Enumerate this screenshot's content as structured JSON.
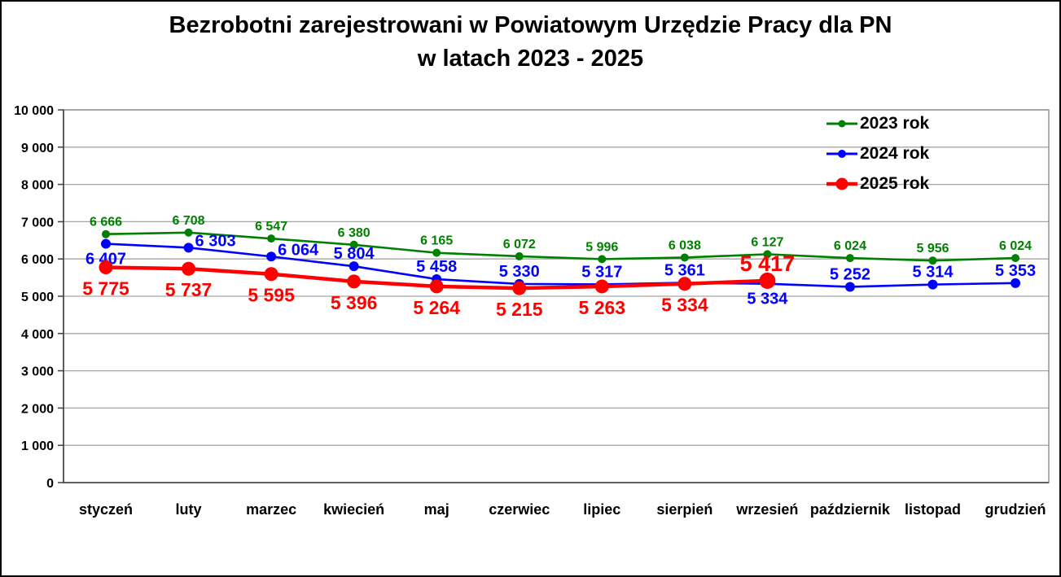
{
  "title": {
    "line1": "Bezrobotni zarejestrowani w Powiatowym Urzędzie Pracy dla PN",
    "line2": "w latach 2023 - 2025"
  },
  "chart_data": {
    "type": "line",
    "title": "Bezrobotni zarejestrowani w Powiatowym Urzędzie Pracy dla PN w latach 2023 - 2025",
    "categories": [
      "styczeń",
      "luty",
      "marzec",
      "kwiecień",
      "maj",
      "czerwiec",
      "lipiec",
      "sierpień",
      "wrzesień",
      "październik",
      "listopad",
      "grudzień"
    ],
    "series": [
      {
        "name": "2023 rok",
        "color": "#008000",
        "values": [
          6666,
          6708,
          6547,
          6380,
          6165,
          6072,
          5996,
          6038,
          6127,
          6024,
          5956,
          6024
        ],
        "label_pos": [
          "above",
          "above",
          "above",
          "above",
          "above",
          "above",
          "above",
          "above",
          "above",
          "above",
          "above",
          "above"
        ],
        "style": {
          "line_width": 2.6,
          "marker_r": 5,
          "label_size": 16,
          "off_above": 10,
          "off_below": 20,
          "legend_r": 4.5,
          "legend_lw": 3
        }
      },
      {
        "name": "2024 rok",
        "color": "#0000FF",
        "values": [
          6407,
          6303,
          6064,
          5804,
          5458,
          5330,
          5317,
          5361,
          5334,
          5252,
          5314,
          5353
        ],
        "label_pos": [
          "below",
          "above-right",
          "above-right",
          "above",
          "above",
          "above",
          "above",
          "above",
          "below",
          "above",
          "above",
          "above"
        ],
        "style": {
          "line_width": 2.6,
          "marker_r": 6,
          "label_size": 20,
          "off_above": 9,
          "off_below": 25,
          "legend_r": 5,
          "legend_lw": 3
        }
      },
      {
        "name": "2025 rok",
        "color": "#FF0000",
        "values": [
          5775,
          5737,
          5595,
          5396,
          5264,
          5215,
          5263,
          5334,
          5417
        ],
        "label_pos": [
          "below",
          "below",
          "below",
          "below",
          "below",
          "below",
          "below",
          "below",
          "above"
        ],
        "highlight_index": 8,
        "style": {
          "line_width": 4.5,
          "marker_r": 8.5,
          "label_size": 23,
          "off_above": 12,
          "off_below": 34,
          "legend_r": 7.5,
          "legend_lw": 4.5,
          "highlight_label_size": 27,
          "highlight_marker_r": 10
        }
      }
    ],
    "y_axis": {
      "min": 0,
      "max": 10000,
      "step": 1000,
      "tick_labels": [
        "0",
        "1 000",
        "2 000",
        "3 000",
        "4 000",
        "5 000",
        "6 000",
        "7 000",
        "8 000",
        "9 000",
        "10 000"
      ]
    },
    "x_axis": {
      "label_font_size": 18
    },
    "grid": true,
    "legend_position": "top-right",
    "colors": {
      "gridline": "#A6A6A6",
      "plot_border": "#8C8C8C",
      "axis": "#404040",
      "text": "#000000",
      "background": "#FFFFFF"
    },
    "ylim": [
      0,
      10000
    ]
  }
}
